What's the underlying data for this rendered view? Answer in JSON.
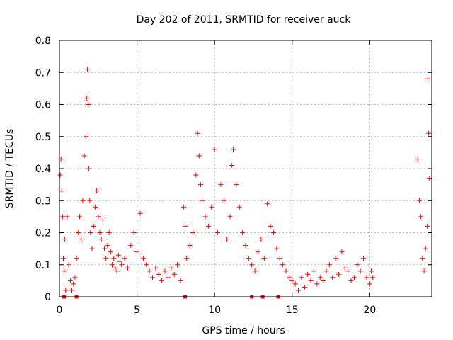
{
  "chart_data": {
    "type": "scatter",
    "title": "Day 202 of 2011, SRMTID for receiver auck",
    "xlabel": "GPS time / hours",
    "ylabel": "SRMTID / TECUs",
    "xlim": [
      0,
      24
    ],
    "ylim": [
      0,
      0.8
    ],
    "xticks": [
      0,
      5,
      10,
      15,
      20
    ],
    "yticks": [
      0,
      0.1,
      0.2,
      0.3,
      0.4,
      0.5,
      0.6,
      0.7,
      0.8
    ],
    "xtick_labels": [
      "0",
      "5",
      "10",
      "15",
      "20"
    ],
    "ytick_labels": [
      "0",
      "0.1",
      "0.2",
      "0.3",
      "0.4",
      "0.5",
      "0.6",
      "0.7",
      "0.8"
    ],
    "grid": true,
    "marker": "+",
    "color": "#ff0000",
    "series": [
      {
        "name": "SRMTID",
        "x": [
          0.05,
          0.1,
          0.15,
          0.2,
          0.25,
          0.3,
          0.35,
          0.4,
          0.5,
          0.6,
          0.7,
          0.8,
          0.9,
          1.0,
          1.1,
          1.2,
          1.3,
          1.4,
          1.5,
          1.6,
          1.7,
          1.75,
          1.8,
          1.85,
          1.9,
          1.95,
          2.0,
          2.1,
          2.2,
          2.3,
          2.4,
          2.5,
          2.6,
          2.7,
          2.8,
          2.9,
          3.0,
          3.1,
          3.2,
          3.3,
          3.4,
          3.5,
          3.6,
          3.7,
          3.8,
          3.9,
          4.0,
          4.2,
          4.4,
          4.6,
          4.8,
          5.0,
          5.2,
          5.4,
          5.6,
          5.8,
          6.0,
          6.2,
          6.4,
          6.6,
          6.8,
          7.0,
          7.2,
          7.4,
          7.6,
          7.8,
          8.0,
          8.1,
          8.2,
          8.4,
          8.6,
          8.8,
          8.9,
          9.0,
          9.1,
          9.2,
          9.4,
          9.6,
          9.8,
          10.0,
          10.2,
          10.4,
          10.6,
          10.8,
          11.0,
          11.1,
          11.2,
          11.4,
          11.6,
          11.8,
          12.0,
          12.2,
          12.4,
          12.6,
          12.8,
          13.0,
          13.2,
          13.4,
          13.6,
          13.8,
          14.0,
          14.2,
          14.4,
          14.6,
          14.8,
          15.0,
          15.2,
          15.4,
          15.6,
          15.8,
          16.0,
          16.2,
          16.4,
          16.6,
          16.8,
          17.0,
          17.2,
          17.4,
          17.6,
          17.8,
          18.0,
          18.2,
          18.4,
          18.6,
          18.8,
          19.0,
          19.2,
          19.4,
          19.6,
          19.8,
          20.0,
          20.1,
          20.2,
          23.1,
          23.2,
          23.3,
          23.4,
          23.5,
          23.6,
          23.7,
          23.75,
          23.8,
          23.85
        ],
        "y": [
          0.38,
          0.43,
          0.33,
          0.25,
          0.12,
          0.08,
          0.18,
          0.02,
          0.25,
          0.1,
          0.05,
          0.02,
          0.04,
          0.06,
          0.12,
          0.2,
          0.25,
          0.18,
          0.3,
          0.44,
          0.5,
          0.62,
          0.71,
          0.6,
          0.4,
          0.3,
          0.2,
          0.15,
          0.22,
          0.28,
          0.33,
          0.25,
          0.2,
          0.18,
          0.24,
          0.15,
          0.12,
          0.16,
          0.2,
          0.14,
          0.1,
          0.12,
          0.09,
          0.08,
          0.13,
          0.11,
          0.1,
          0.12,
          0.09,
          0.16,
          0.2,
          0.14,
          0.26,
          0.12,
          0.1,
          0.08,
          0.06,
          0.09,
          0.07,
          0.05,
          0.08,
          0.06,
          0.09,
          0.07,
          0.1,
          0.05,
          0.28,
          0.22,
          0.12,
          0.16,
          0.2,
          0.38,
          0.51,
          0.44,
          0.35,
          0.3,
          0.25,
          0.22,
          0.28,
          0.46,
          0.2,
          0.35,
          0.3,
          0.18,
          0.25,
          0.41,
          0.46,
          0.35,
          0.28,
          0.2,
          0.16,
          0.12,
          0.1,
          0.08,
          0.14,
          0.18,
          0.12,
          0.29,
          0.22,
          0.2,
          0.15,
          0.12,
          0.1,
          0.08,
          0.06,
          0.05,
          0.04,
          0.02,
          0.06,
          0.03,
          0.07,
          0.05,
          0.08,
          0.04,
          0.06,
          0.05,
          0.08,
          0.1,
          0.06,
          0.12,
          0.07,
          0.14,
          0.09,
          0.08,
          0.05,
          0.06,
          0.1,
          0.08,
          0.12,
          0.06,
          0.04,
          0.08,
          0.06,
          0.43,
          0.3,
          0.25,
          0.12,
          0.08,
          0.15,
          0.22,
          0.68,
          0.51,
          0.37
        ]
      }
    ],
    "zero_markers_x": [
      0.3,
      1.1,
      8.1,
      12.4,
      13.1,
      14.1
    ]
  }
}
